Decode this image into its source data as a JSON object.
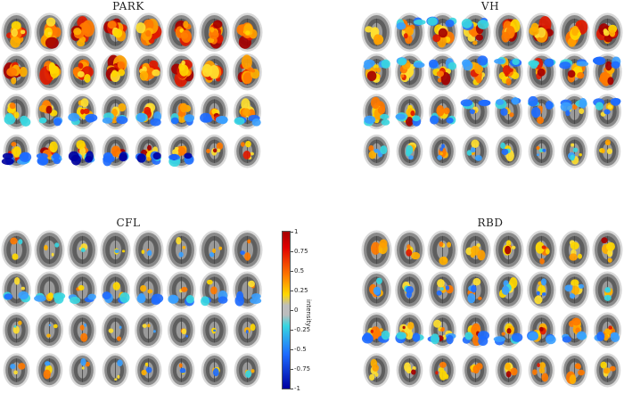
{
  "panels": [
    {
      "id": "park",
      "title": "PARK"
    },
    {
      "id": "vh",
      "title": "VH"
    },
    {
      "id": "cfl",
      "title": "CFL"
    },
    {
      "id": "rbd",
      "title": "RBD"
    }
  ],
  "colorbar": {
    "label": "intensity",
    "ticks": [
      "1",
      "0.75",
      "0.5",
      "0.25",
      "0",
      "-0.25",
      "-0.5",
      "-0.75",
      "-1"
    ],
    "range": [
      -1,
      1
    ]
  },
  "colors": {
    "positive_high": "#a50000",
    "positive_mid": "#ff7a00",
    "positive_low": "#ffd800",
    "neutral": "#bdbdbd",
    "negative_low": "#38d6e0",
    "negative_mid": "#1e6cff",
    "negative_high": "#0000a0",
    "brain_gray": "#707070",
    "head_halo": "#d8d8d8"
  },
  "grid": {
    "rows": 4,
    "cols": 8
  },
  "activation_pattern": {
    "park": [
      [
        "hot",
        "hot",
        "hot",
        "hot",
        "hot",
        "hot",
        "hot",
        "hot"
      ],
      [
        "hot",
        "hot",
        "hot",
        "hot",
        "hot",
        "hot",
        "hot",
        "hot"
      ],
      [
        "mixed",
        "mixed",
        "mixed",
        "mixed",
        "mixed",
        "mixed",
        "mixed",
        "mixed"
      ],
      [
        "mixed_cold",
        "mixed_cold",
        "mixed_cold",
        "mixed_cold",
        "mixed_cold",
        "mixed_cold",
        "warm_spots",
        "warm_spots"
      ]
    ],
    "vh": [
      [
        "warm_spots",
        "warm",
        "warm",
        "warm",
        "hot",
        "hot",
        "hot",
        "hot"
      ],
      [
        "warm",
        "warm",
        "warm",
        "warm",
        "warm",
        "warm",
        "warm",
        "warm"
      ],
      [
        "mixed",
        "mixed",
        "mixed",
        "cold_spots",
        "cold_spots",
        "cold_spots",
        "cold_spots",
        "cold_spots"
      ],
      [
        "mixed_spots",
        "mixed_spots",
        "mixed_spots",
        "mixed_spots",
        "mixed_spots",
        "mixed_spots",
        "mixed_spots",
        "warm_spots"
      ]
    ],
    "cfl": [
      [
        "sparse",
        "sparse",
        "sparse",
        "sparse",
        "sparse",
        "sparse",
        "sparse",
        "sparse"
      ],
      [
        "cold",
        "cold",
        "cold",
        "cold",
        "cold",
        "cold",
        "cold",
        "cold"
      ],
      [
        "sparse",
        "sparse",
        "sparse",
        "sparse",
        "sparse",
        "sparse",
        "sparse",
        "sparse"
      ],
      [
        "sparse",
        "sparse",
        "sparse",
        "sparse",
        "sparse",
        "sparse",
        "sparse",
        "sparse"
      ]
    ],
    "rbd": [
      [
        "warm_spots",
        "warm_spots",
        "warm_spots",
        "warm_spots",
        "warm_spots",
        "warm_spots",
        "warm_spots",
        "warm_spots"
      ],
      [
        "mixed_spots",
        "mixed_spots",
        "mixed_spots",
        "mixed_spots",
        "mixed_spots",
        "mixed_spots",
        "mixed_spots",
        "mixed_spots"
      ],
      [
        "mixed",
        "mixed",
        "mixed",
        "mixed",
        "mixed",
        "mixed",
        "mixed",
        "mixed"
      ],
      [
        "warm_spots",
        "warm_spots",
        "warm_spots",
        "warm_spots",
        "warm_spots",
        "warm_spots",
        "warm_spots",
        "warm_spots"
      ]
    ]
  }
}
